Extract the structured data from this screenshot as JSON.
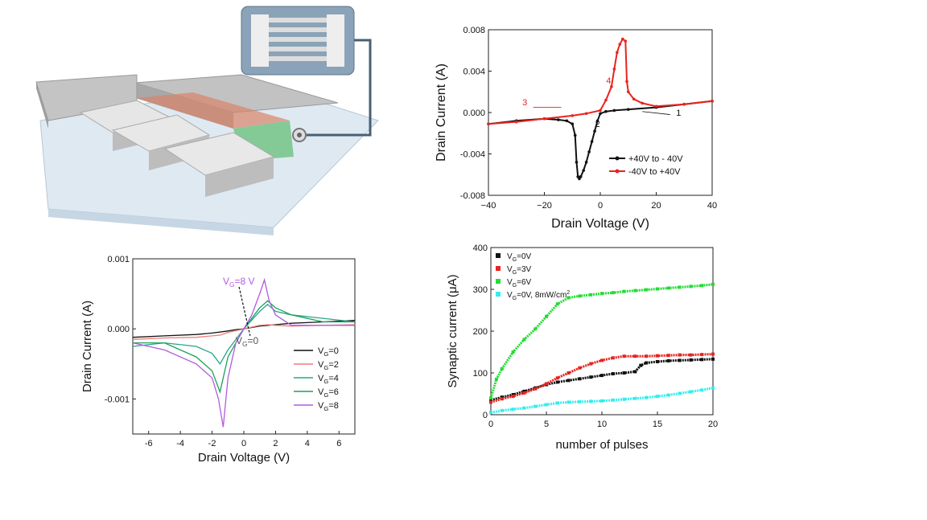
{
  "figure": {
    "colors": {
      "black": "#111111",
      "red": "#e8231e",
      "pink": "#f07a7a",
      "teal": "#2aa58a",
      "green": "#1aa35a",
      "purple": "#b15be0",
      "bright_green": "#22dd33",
      "cyan": "#33eeee",
      "blue": "#3f6fd6",
      "tan": "#a3864a"
    },
    "device_icons": [
      "device-schematic-icon",
      "electrode-pads-icon",
      "interdigitated-inset-icon"
    ]
  },
  "chart_data": [
    {
      "id": "iv-sweep",
      "type": "line",
      "xlabel": "Drain Voltage (V)",
      "ylabel": "Drain Current (A)",
      "xlim": [
        -40,
        40
      ],
      "ylim": [
        -0.008,
        0.008
      ],
      "xticks": [
        -40,
        -20,
        0,
        20,
        40
      ],
      "xtick_labels": [
        "−40",
        "−20",
        "0",
        "20",
        "40"
      ],
      "yticks": [
        0.008,
        0.004,
        0.0,
        -0.004,
        -0.008
      ],
      "ytick_labels": [
        "0.008",
        "0.004",
        "0.000",
        "-0.004",
        "-0.008"
      ],
      "legend": [
        "+40V to - 40V",
        "-40V to +40V"
      ],
      "annotations": [
        "1",
        "2",
        "3",
        "4"
      ],
      "series": [
        {
          "name": "+40V to - 40V",
          "color": "#111111",
          "x": [
            40,
            30,
            20,
            10,
            5,
            2,
            0,
            -1,
            -2,
            -3,
            -4,
            -5,
            -6,
            -7,
            -7.5,
            -8,
            -8.5,
            -9,
            -10,
            -12,
            -15,
            -20,
            -30,
            -40
          ],
          "y": [
            0.0011,
            0.0008,
            0.0005,
            0.0003,
            0.0002,
            0.0001,
            -0.0001,
            -0.0008,
            -0.0018,
            -0.0028,
            -0.0038,
            -0.0048,
            -0.0056,
            -0.0062,
            -0.0064,
            -0.0062,
            -0.0048,
            -0.0022,
            -0.0011,
            -0.0008,
            -0.0007,
            -0.0006,
            -0.0008,
            -0.0011
          ]
        },
        {
          "name": "-40V to +40V",
          "color": "#e8231e",
          "x": [
            -40,
            -30,
            -20,
            -10,
            -5,
            0,
            2,
            4,
            5,
            6,
            7,
            8,
            9,
            9.5,
            10,
            12,
            15,
            20,
            30,
            40
          ],
          "y": [
            -0.0011,
            -0.0009,
            -0.0006,
            -0.0003,
            -0.0001,
            0.0002,
            0.0012,
            0.0025,
            0.0042,
            0.0058,
            0.0066,
            0.0071,
            0.0069,
            0.003,
            0.002,
            0.0013,
            0.0009,
            0.0006,
            0.0008,
            0.0011
          ]
        }
      ]
    },
    {
      "id": "gate-dependent-iv",
      "type": "line",
      "xlabel": "Drain Voltage (V)",
      "ylabel": "Drain Current (A)",
      "xlim": [
        -7,
        7
      ],
      "ylim": [
        -0.0015,
        0.001
      ],
      "xticks": [
        -6,
        -4,
        -2,
        0,
        2,
        4,
        6
      ],
      "xtick_labels": [
        "-6",
        "-4",
        "-2",
        "0",
        "2",
        "4",
        "6"
      ],
      "yticks": [
        0.001,
        0.0,
        -0.001
      ],
      "ytick_labels": [
        "0.001",
        "0.000",
        "-0.001"
      ],
      "annotations": [
        "V",
        "G",
        "=8 V",
        "V",
        "G",
        "=0"
      ],
      "legend": [
        {
          "prefix": "V",
          "sub": "G",
          "suffix": "=0"
        },
        {
          "prefix": "V",
          "sub": "G",
          "suffix": "=2"
        },
        {
          "prefix": "V",
          "sub": "G",
          "suffix": "=4"
        },
        {
          "prefix": "V",
          "sub": "G",
          "suffix": "=6"
        },
        {
          "prefix": "V",
          "sub": "G",
          "suffix": "=8"
        }
      ],
      "series": [
        {
          "name": "VG=0",
          "color": "#111111",
          "x": [
            -7,
            -5,
            -3,
            -2,
            -1,
            -0.5,
            0,
            0.5,
            1,
            2,
            3,
            5,
            7
          ],
          "y": [
            -0.00012,
            -0.0001,
            -8e-05,
            -6e-05,
            -3e-05,
            -1e-05,
            0,
            2e-05,
            4e-05,
            6e-05,
            8e-05,
            0.0001,
            0.00012
          ]
        },
        {
          "name": "VG=2",
          "color": "#f07a7a",
          "x": [
            -7,
            -5,
            -3,
            -2,
            -1.5,
            -1,
            0,
            1,
            1.5,
            2,
            3,
            5,
            7
          ],
          "y": [
            -0.00015,
            -0.00013,
            -0.00012,
            -0.0001,
            -9e-05,
            -5e-05,
            0,
            5e-05,
            6e-05,
            5e-05,
            4e-05,
            5e-05,
            6e-05
          ]
        },
        {
          "name": "VG=4",
          "color": "#2aa58a",
          "x": [
            -7,
            -5,
            -3,
            -2,
            -1.5,
            -1,
            0,
            1,
            1.5,
            2,
            3,
            5,
            7
          ],
          "y": [
            -0.00025,
            -0.0002,
            -0.00025,
            -0.00035,
            -0.0005,
            -0.0003,
            0,
            0.00025,
            0.00035,
            0.00025,
            0.0002,
            0.00015,
            0.0001
          ]
        },
        {
          "name": "VG=6",
          "color": "#1aa35a",
          "x": [
            -7,
            -5,
            -3,
            -2,
            -1.5,
            -1,
            0,
            1,
            1.5,
            2,
            3,
            5,
            7
          ],
          "y": [
            -0.0002,
            -0.0002,
            -0.0004,
            -0.0006,
            -0.0009,
            -0.0004,
            0,
            0.0003,
            0.0004,
            0.0003,
            0.0002,
            0.0001,
            0.0001
          ]
        },
        {
          "name": "VG=8",
          "color": "#b15be0",
          "x": [
            -7,
            -5,
            -3,
            -2,
            -1.6,
            -1.3,
            -1,
            -0.5,
            0,
            0.5,
            1,
            1.3,
            1.6,
            2,
            3,
            5,
            7
          ],
          "y": [
            -0.0002,
            -0.0003,
            -0.0005,
            -0.0007,
            -0.001,
            -0.0014,
            -0.0007,
            -0.0002,
            0,
            0.0002,
            0.0005,
            0.0007,
            0.0004,
            0.0002,
            5e-05,
            5e-05,
            5e-05
          ]
        }
      ]
    },
    {
      "id": "synaptic-current",
      "type": "scatter",
      "xlabel": "number of pulses",
      "ylabel": "Synaptic current (μA)",
      "xlim": [
        0,
        20
      ],
      "ylim": [
        0,
        400
      ],
      "xticks": [
        0,
        5,
        10,
        15,
        20
      ],
      "xtick_labels": [
        "0",
        "5",
        "10",
        "15",
        "20"
      ],
      "yticks": [
        0,
        100,
        200,
        300,
        400
      ],
      "ytick_labels": [
        "0",
        "100",
        "200",
        "300",
        "400"
      ],
      "legend": [
        {
          "prefix": "V",
          "sub": "G",
          "suffix": "=0V"
        },
        {
          "prefix": "V",
          "sub": "G",
          "suffix": "=3V"
        },
        {
          "prefix": "V",
          "sub": "G",
          "suffix": "=6V"
        },
        {
          "prefix": "V",
          "sub": "G",
          "suffix": "=0V, 8mW/cm",
          "sup": "2"
        }
      ],
      "series": [
        {
          "name": "VG=0V",
          "color": "#111111",
          "x": [
            0,
            1,
            2,
            3,
            4,
            5,
            6,
            7,
            8,
            9,
            10,
            11,
            12,
            13,
            13.5,
            14,
            15,
            16,
            17,
            18,
            19,
            20
          ],
          "y": [
            35,
            42,
            48,
            56,
            64,
            72,
            78,
            82,
            86,
            90,
            94,
            98,
            100,
            103,
            118,
            124,
            127,
            129,
            130,
            131,
            132,
            133
          ]
        },
        {
          "name": "VG=3V",
          "color": "#e8231e",
          "x": [
            0,
            1,
            2,
            3,
            4,
            5,
            6,
            7,
            8,
            9,
            10,
            11,
            12,
            13,
            14,
            15,
            16,
            17,
            18,
            19,
            20
          ],
          "y": [
            30,
            38,
            44,
            52,
            62,
            74,
            88,
            100,
            112,
            122,
            130,
            136,
            140,
            140,
            140,
            141,
            142,
            143,
            143,
            144,
            145
          ]
        },
        {
          "name": "VG=6V",
          "color": "#22dd33",
          "x": [
            0,
            0.5,
            1,
            2,
            3,
            4,
            5,
            6,
            7,
            8,
            9,
            10,
            11,
            12,
            13,
            14,
            15,
            16,
            17,
            18,
            19,
            20
          ],
          "y": [
            40,
            85,
            110,
            150,
            180,
            205,
            235,
            265,
            280,
            284,
            287,
            290,
            292,
            295,
            297,
            299,
            301,
            303,
            305,
            307,
            309,
            312
          ]
        },
        {
          "name": "VG=0V, 8mW/cm2",
          "color": "#33eeee",
          "x": [
            0,
            1,
            2,
            3,
            4,
            5,
            6,
            7,
            8,
            9,
            10,
            11,
            12,
            13,
            14,
            15,
            16,
            17,
            18,
            19,
            20
          ],
          "y": [
            5,
            10,
            13,
            16,
            20,
            24,
            28,
            30,
            31,
            32,
            33,
            35,
            37,
            39,
            41,
            44,
            47,
            51,
            55,
            59,
            64
          ]
        }
      ]
    }
  ]
}
